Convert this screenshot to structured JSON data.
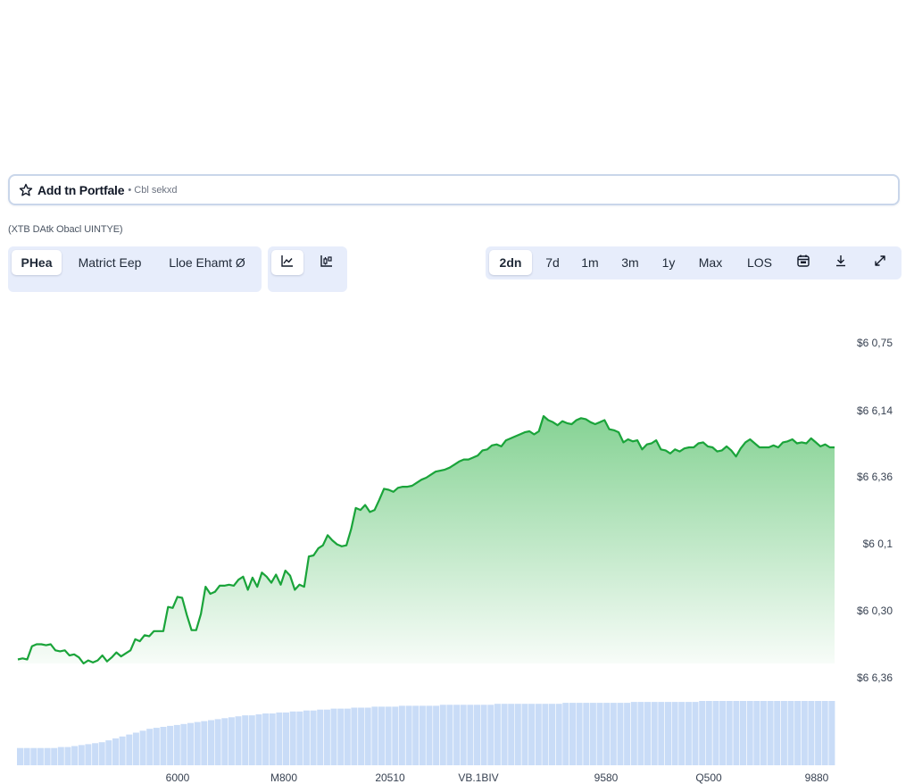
{
  "portfolio": {
    "label": "Add tn Portfale",
    "note": "• Cbl sekxd"
  },
  "caption": "(XTB DAtk Obacl UINTYE)",
  "view_tabs": [
    {
      "label": "PHea",
      "active": true
    },
    {
      "label": "Matrict Eep",
      "active": false
    },
    {
      "label": "Lloe Ehamt Ø",
      "active": false
    }
  ],
  "chart_type_buttons": [
    {
      "icon": "line-chart-icon",
      "active": true
    },
    {
      "icon": "candlestick-chart-icon",
      "active": false
    }
  ],
  "range_tabs": [
    {
      "label": "2dn",
      "active": true
    },
    {
      "label": "7d",
      "active": false
    },
    {
      "label": "1m",
      "active": false
    },
    {
      "label": "3m",
      "active": false
    },
    {
      "label": "1y",
      "active": false
    },
    {
      "label": "Max",
      "active": false
    },
    {
      "label": "LOS",
      "active": false
    }
  ],
  "range_icons": [
    "calendar-icon",
    "download-icon",
    "expand-icon"
  ],
  "colors": {
    "line": "#1aa43a",
    "area_top": "#7fd08e",
    "volume": "#c9dcf7",
    "accent_bg": "#e7edfb"
  },
  "chart_data": {
    "type": "area",
    "y_tick_labels": [
      "$6 0,75",
      "$6 6,14",
      "$6 6,36",
      "$6 0,1",
      "$6 0,30",
      "$6 6,36"
    ],
    "x_tick_labels": [
      "6000",
      "M800",
      "20510",
      "VB.1BIV",
      "9580",
      "Q500",
      "9880"
    ],
    "price_series": [
      0.23,
      0.24,
      0.23,
      0.36,
      0.38,
      0.38,
      0.37,
      0.38,
      0.32,
      0.31,
      0.32,
      0.27,
      0.28,
      0.25,
      0.19,
      0.22,
      0.2,
      0.22,
      0.27,
      0.21,
      0.25,
      0.3,
      0.26,
      0.29,
      0.32,
      0.43,
      0.41,
      0.47,
      0.46,
      0.51,
      0.51,
      0.51,
      0.75,
      0.74,
      0.85,
      0.84,
      0.67,
      0.52,
      0.52,
      0.68,
      0.95,
      0.88,
      0.9,
      0.96,
      0.96,
      0.97,
      0.96,
      1.02,
      1.05,
      0.92,
      1.04,
      0.95,
      1.09,
      1.05,
      0.99,
      1.07,
      0.97,
      1.11,
      1.06,
      0.92,
      0.97,
      0.95,
      1.25,
      1.26,
      1.33,
      1.36,
      1.46,
      1.41,
      1.37,
      1.35,
      1.36,
      1.52,
      1.73,
      1.71,
      1.76,
      1.69,
      1.71,
      1.81,
      1.92,
      1.91,
      1.89,
      1.93,
      1.94,
      1.94,
      1.95,
      1.98,
      2.01,
      2.03,
      2.06,
      2.09,
      2.1,
      2.11,
      2.13,
      2.16,
      2.19,
      2.21,
      2.21,
      2.23,
      2.25,
      2.3,
      2.31,
      2.35,
      2.36,
      2.34,
      2.4,
      2.42,
      2.44,
      2.46,
      2.48,
      2.49,
      2.46,
      2.49,
      2.64,
      2.6,
      2.58,
      2.55,
      2.59,
      2.57,
      2.56,
      2.6,
      2.62,
      2.61,
      2.58,
      2.56,
      2.58,
      2.6,
      2.51,
      2.5,
      2.48,
      2.38,
      2.41,
      2.39,
      2.4,
      2.31,
      2.36,
      2.37,
      2.4,
      2.31,
      2.3,
      2.27,
      2.31,
      2.29,
      2.32,
      2.33,
      2.33,
      2.37,
      2.38,
      2.34,
      2.33,
      2.29,
      2.3,
      2.34,
      2.3,
      2.24,
      2.32,
      2.38,
      2.41,
      2.37,
      2.33,
      2.33,
      2.33,
      2.35,
      2.33,
      2.38,
      2.39,
      2.41,
      2.37,
      2.38,
      2.37,
      2.42,
      2.38,
      2.34,
      2.36,
      2.33,
      2.33
    ],
    "volume_series": [
      0.18,
      0.18,
      0.18,
      0.18,
      0.18,
      0.18,
      0.19,
      0.19,
      0.2,
      0.21,
      0.22,
      0.23,
      0.24,
      0.26,
      0.28,
      0.3,
      0.32,
      0.34,
      0.36,
      0.38,
      0.39,
      0.4,
      0.41,
      0.42,
      0.43,
      0.44,
      0.45,
      0.46,
      0.47,
      0.48,
      0.49,
      0.5,
      0.51,
      0.52,
      0.52,
      0.53,
      0.54,
      0.54,
      0.55,
      0.55,
      0.56,
      0.56,
      0.57,
      0.57,
      0.58,
      0.58,
      0.59,
      0.59,
      0.59,
      0.6,
      0.6,
      0.6,
      0.61,
      0.61,
      0.61,
      0.61,
      0.62,
      0.62,
      0.62,
      0.62,
      0.62,
      0.62,
      0.63,
      0.63,
      0.63,
      0.63,
      0.63,
      0.63,
      0.63,
      0.63,
      0.64,
      0.64,
      0.64,
      0.64,
      0.64,
      0.64,
      0.64,
      0.64,
      0.64,
      0.64,
      0.65,
      0.65,
      0.65,
      0.65,
      0.65,
      0.65,
      0.65,
      0.65,
      0.65,
      0.65,
      0.66,
      0.66,
      0.66,
      0.66,
      0.66,
      0.66,
      0.66,
      0.66,
      0.66,
      0.66,
      0.67,
      0.67,
      0.67,
      0.67,
      0.67,
      0.67,
      0.67,
      0.67,
      0.67,
      0.67,
      0.67,
      0.67,
      0.67,
      0.67,
      0.67,
      0.67,
      0.67,
      0.67,
      0.67,
      0.67
    ],
    "grid": false,
    "legend": "none"
  }
}
